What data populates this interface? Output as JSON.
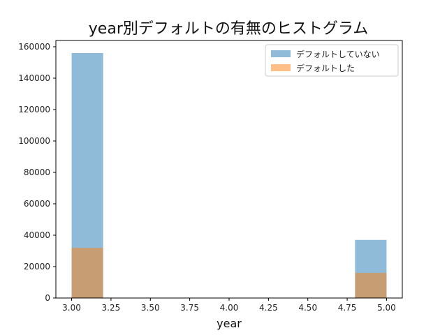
{
  "chart_data": {
    "type": "bar",
    "title": "year別デフォルトの有無のヒストグラム",
    "xlabel": "year",
    "ylabel": "",
    "xlim": [
      2.9,
      5.1
    ],
    "ylim": [
      0,
      164000
    ],
    "x_ticks": [
      "3.00",
      "3.25",
      "3.50",
      "3.75",
      "4.00",
      "4.25",
      "4.50",
      "4.75",
      "5.00"
    ],
    "x_tick_values": [
      3.0,
      3.25,
      3.5,
      3.75,
      4.0,
      4.25,
      4.5,
      4.75,
      5.0
    ],
    "y_ticks": [
      "0",
      "20000",
      "40000",
      "60000",
      "80000",
      "100000",
      "120000",
      "140000",
      "160000"
    ],
    "y_tick_values": [
      0,
      20000,
      40000,
      60000,
      80000,
      100000,
      120000,
      140000,
      160000
    ],
    "legend_position": "top-right",
    "grid": false,
    "series": [
      {
        "name": "デフォルトしていない",
        "color": "#1f77b4",
        "opacity": 0.5,
        "bins": [
          {
            "x0": 3.0,
            "x1": 3.2,
            "value": 156000
          },
          {
            "x0": 4.8,
            "x1": 5.0,
            "value": 37000
          }
        ]
      },
      {
        "name": "デフォルトした",
        "color": "#ff7f0e",
        "opacity": 0.5,
        "bins": [
          {
            "x0": 3.0,
            "x1": 3.2,
            "value": 32000
          },
          {
            "x0": 4.8,
            "x1": 5.0,
            "value": 16000
          }
        ]
      }
    ]
  }
}
